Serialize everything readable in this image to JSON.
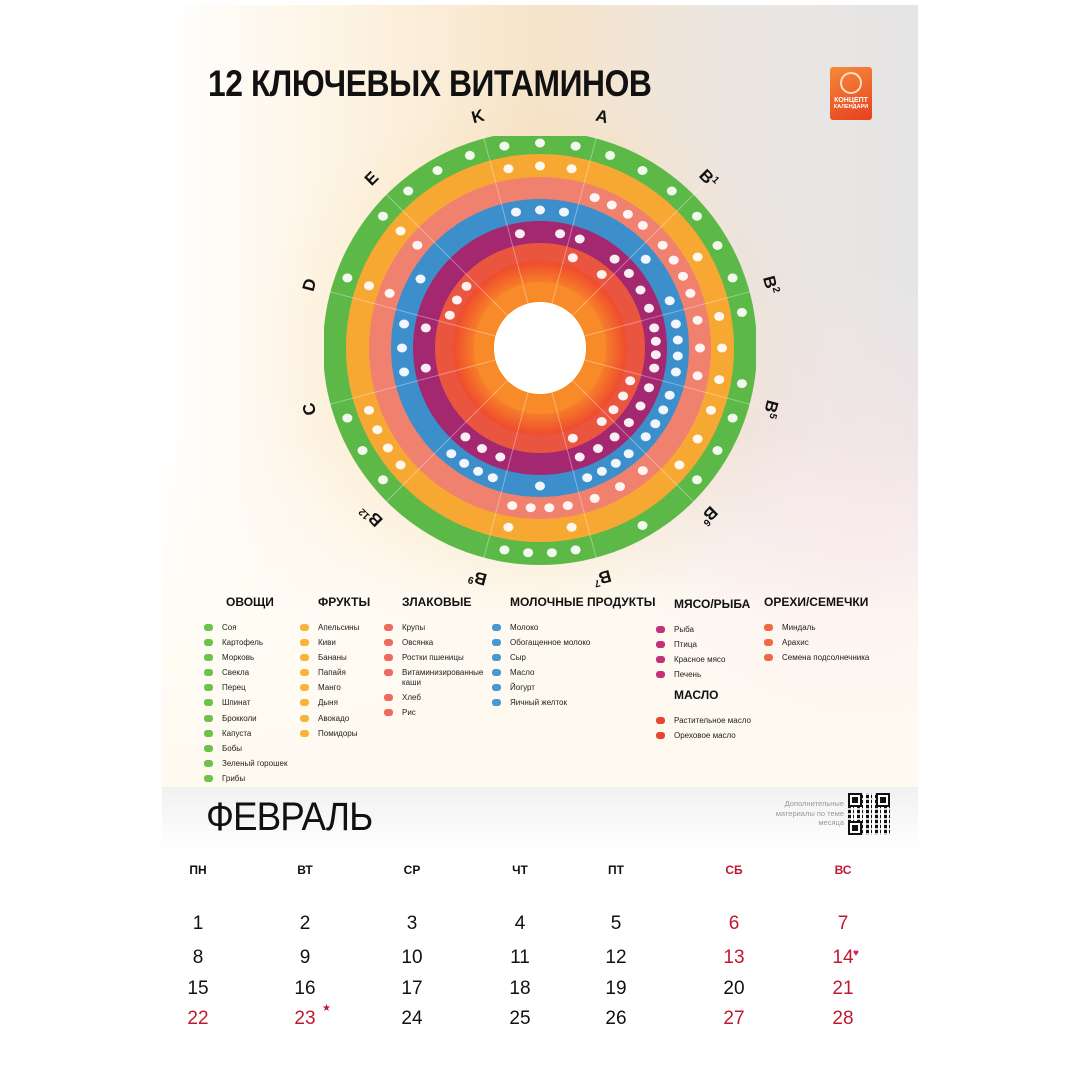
{
  "header": {
    "title": "12 КЛЮЧЕВЫХ ВИТАМИНОВ",
    "logo": {
      "line1": "КОНЦЕПТ",
      "line2": "КАЛЕНДАРИ",
      "icon": "lightbulb-icon",
      "color": "#ec5a25"
    }
  },
  "wheel": {
    "vitamins": [
      {
        "name": "A",
        "sup": ""
      },
      {
        "name": "B",
        "sup": "1"
      },
      {
        "name": "B",
        "sup": "2"
      },
      {
        "name": "B",
        "sup": "5"
      },
      {
        "name": "B",
        "sup": "6"
      },
      {
        "name": "B",
        "sup": "7"
      },
      {
        "name": "B",
        "sup": "9"
      },
      {
        "name": "B",
        "sup": "12"
      },
      {
        "name": "C",
        "sup": ""
      },
      {
        "name": "D",
        "sup": ""
      },
      {
        "name": "E",
        "sup": ""
      },
      {
        "name": "K",
        "sup": ""
      }
    ],
    "rings": [
      {
        "category": "Овощи",
        "color": "#5cb947"
      },
      {
        "category": "Фрукты",
        "color": "#f7a833"
      },
      {
        "category": "Злаковые",
        "color": "#f0816e"
      },
      {
        "category": "Молочные продукты",
        "color": "#3d8fcc"
      },
      {
        "category": "Мясо/Рыба",
        "color": "#a3286f"
      },
      {
        "category": "Орехи/Семечки",
        "color": "#e9553f"
      },
      {
        "category": "Масло",
        "color": "#ef4b2c"
      },
      {
        "category": "",
        "color": "#f88a2a"
      },
      {
        "category": "",
        "color": "#f4e224"
      }
    ]
  },
  "legend": [
    {
      "title": "ОВОЩИ",
      "color": "#6cc24a",
      "items": [
        "Соя",
        "Картофель",
        "Морковь",
        "Свекла",
        "Перец",
        "Шпинат",
        "Брокколи",
        "Капуста",
        "Бобы",
        "Зеленый горошек",
        "Грибы"
      ]
    },
    {
      "title": "ФРУКТЫ",
      "color": "#f7b43a",
      "items": [
        "Апельсины",
        "Киви",
        "Бананы",
        "Папайя",
        "Манго",
        "Дыня",
        "Авокадо",
        "Помидоры"
      ]
    },
    {
      "title": "ЗЛАКОВЫЕ",
      "color": "#ee6a5f",
      "items": [
        "Крупы",
        "Овсянка",
        "Ростки пшеницы",
        "Витаминизированные каши",
        "Хлеб",
        "Рис"
      ]
    },
    {
      "title": "МОЛОЧНЫЕ ПРОДУКТЫ",
      "color": "#4a98d1",
      "items": [
        "Молоко",
        "Обогащенное молоко",
        "Сыр",
        "Масло",
        "Йогурт",
        "Яичный желток"
      ]
    },
    {
      "title": "МЯСО/РЫБА",
      "color": "#c4307a",
      "items": [
        "Рыба",
        "Птица",
        "Красное мясо",
        "Печень"
      ]
    },
    {
      "title": "МАСЛО",
      "color": "#e8452e",
      "items": [
        "Растительное масло",
        "Ореховое масло"
      ]
    },
    {
      "title": "ОРЕХИ/СЕМЕЧКИ",
      "color": "#ef6a44",
      "items": [
        "Миндаль",
        "Арахис",
        "Семена подсолнечника"
      ]
    }
  ],
  "calendar": {
    "month": "ФЕВРАЛЬ",
    "qr_note": "Дополнительные материалы по теме месяца",
    "weekdays": [
      "ПН",
      "ВТ",
      "СР",
      "ЧТ",
      "ПТ",
      "СБ",
      "ВС"
    ],
    "weeks": [
      [
        {
          "d": "1"
        },
        {
          "d": "2"
        },
        {
          "d": "3"
        },
        {
          "d": "4"
        },
        {
          "d": "5"
        },
        {
          "d": "6",
          "red": true
        },
        {
          "d": "7",
          "red": true
        }
      ],
      [
        {
          "d": "8"
        },
        {
          "d": "9"
        },
        {
          "d": "10"
        },
        {
          "d": "11"
        },
        {
          "d": "12"
        },
        {
          "d": "13",
          "red": true
        },
        {
          "d": "14",
          "red": true,
          "mark": "heart-icon"
        }
      ],
      [
        {
          "d": "15"
        },
        {
          "d": "16"
        },
        {
          "d": "17"
        },
        {
          "d": "18"
        },
        {
          "d": "19"
        },
        {
          "d": "20"
        },
        {
          "d": "21",
          "red": true
        }
      ],
      [
        {
          "d": "22",
          "red": true
        },
        {
          "d": "23",
          "red": true,
          "mark": "star-icon"
        },
        {
          "d": "24"
        },
        {
          "d": "25"
        },
        {
          "d": "26"
        },
        {
          "d": "27",
          "red": true
        },
        {
          "d": "28",
          "red": true
        }
      ]
    ],
    "holiday_color": "#c0182f"
  }
}
